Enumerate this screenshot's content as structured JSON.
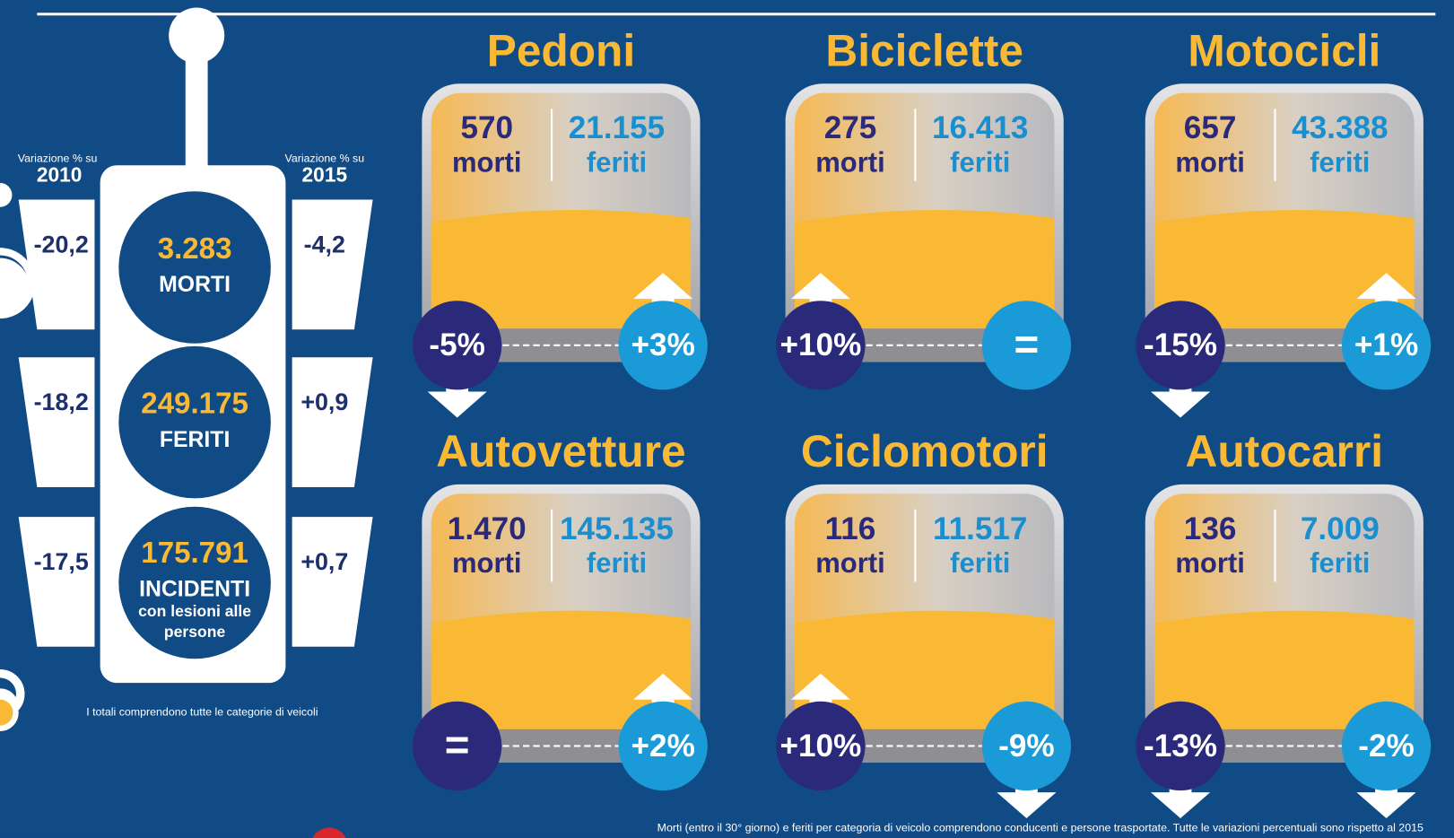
{
  "header": {
    "left_label": "Variazione % su",
    "left_year": "2010",
    "right_label": "Variazione % su",
    "right_year": "2015"
  },
  "totals": [
    {
      "value": "3.283",
      "label": "MORTI",
      "change_2010": "-20,2",
      "change_2015": "-4,2"
    },
    {
      "value": "249.175",
      "label": "FERITI",
      "change_2010": "-18,2",
      "change_2015": "+0,9"
    },
    {
      "value": "175.791",
      "label": "INCIDENTI",
      "sublabel_1": "con lesioni alle",
      "sublabel_2": "persone",
      "change_2010": "-17,5",
      "change_2015": "+0,7"
    }
  ],
  "totals_note": "I totali comprendono tutte le categorie di veicoli",
  "cards": [
    {
      "title": "Pedoni",
      "deaths": "570",
      "deaths_label": "morti",
      "injured": "21.155",
      "injured_label": "feriti",
      "deaths_change": "-5%",
      "injured_change": "+3%"
    },
    {
      "title": "Biciclette",
      "deaths": "275",
      "deaths_label": "morti",
      "injured": "16.413",
      "injured_label": "feriti",
      "deaths_change": "+10%",
      "injured_change": "="
    },
    {
      "title": "Motocicli",
      "deaths": "657",
      "deaths_label": "morti",
      "injured": "43.388",
      "injured_label": "feriti",
      "deaths_change": "-15%",
      "injured_change": "+1%"
    },
    {
      "title": "Autovetture",
      "deaths": "1.470",
      "deaths_label": "morti",
      "injured": "145.135",
      "injured_label": "feriti",
      "deaths_change": "=",
      "injured_change": "+2%"
    },
    {
      "title": "Ciclomotori",
      "deaths": "116",
      "deaths_label": "morti",
      "injured": "11.517",
      "injured_label": "feriti",
      "deaths_change": "+10%",
      "injured_change": "-9%"
    },
    {
      "title": "Autocarri",
      "deaths": "136",
      "deaths_label": "morti",
      "injured": "7.009",
      "injured_label": "feriti",
      "deaths_change": "-13%",
      "injured_change": "-2%"
    }
  ],
  "footnote": "Morti (entro il 30° giorno) e feriti per categoria di veicolo comprendono conducenti e persone trasportate. Tutte le variazioni percentuali sono rispetto al 2015"
}
